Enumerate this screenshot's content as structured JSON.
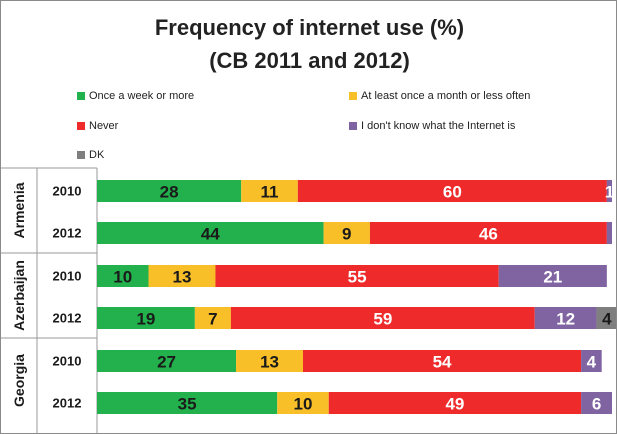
{
  "chart_data": {
    "type": "bar",
    "orientation": "horizontal",
    "stacked": true,
    "title_line1": "Frequency of internet use (%)",
    "title_line2": "(CB 2011 and 2012)",
    "legend_position": "top",
    "groups": [
      {
        "name": "Armenia",
        "categories": [
          "2010",
          "2012"
        ]
      },
      {
        "name": "Azerbaijan",
        "categories": [
          "2010",
          "2012"
        ]
      },
      {
        "name": "Georgia",
        "categories": [
          "2010",
          "2012"
        ]
      }
    ],
    "series": [
      {
        "name": "Once a week or more",
        "color": "#22b14c",
        "label_color": "#1a1a1a",
        "values": [
          28,
          44,
          10,
          19,
          27,
          35
        ],
        "labels": [
          "28",
          "44",
          "10",
          "19",
          "27",
          "35"
        ]
      },
      {
        "name": "At least once a month or less often",
        "color": "#f8bf28",
        "label_color": "#1a1a1a",
        "values": [
          11,
          9,
          13,
          7,
          13,
          10
        ],
        "labels": [
          "11",
          "9",
          "13",
          "7",
          "13",
          "10"
        ]
      },
      {
        "name": "Never",
        "color": "#ee2a2a",
        "label_color": "#ffffff",
        "values": [
          60,
          46,
          55,
          59,
          54,
          49
        ],
        "labels": [
          "60",
          "46",
          "55",
          "59",
          "54",
          "49"
        ]
      },
      {
        "name": "I don't know what the Internet is",
        "color": "#8064a2",
        "label_color": "#ffffff",
        "values": [
          1,
          1,
          21,
          12,
          4,
          6
        ],
        "labels": [
          "1",
          "",
          "21",
          "12",
          "4",
          "6"
        ]
      },
      {
        "name": "DK",
        "color": "#7f7f7f",
        "label_color": "#1a1a1a",
        "values": [
          0,
          0,
          0,
          4,
          0,
          0
        ],
        "labels": [
          "",
          "",
          "",
          "4",
          "",
          ""
        ]
      }
    ]
  }
}
